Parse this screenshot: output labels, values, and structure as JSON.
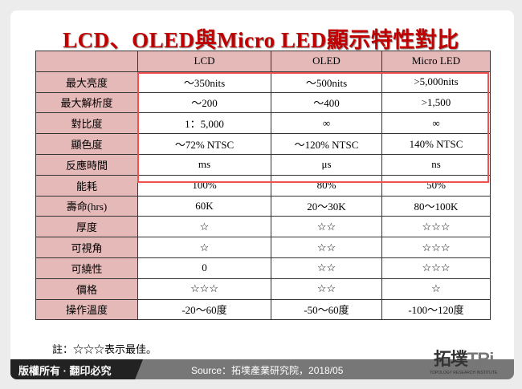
{
  "title": "LCD、OLED與Micro LED顯示特性對比",
  "table": {
    "headers": [
      "",
      "LCD",
      "OLED",
      "Micro LED"
    ],
    "rows": [
      [
        "最大亮度",
        "～350nits",
        "～500nits",
        ">5,000nits"
      ],
      [
        "最大解析度",
        "～200",
        "～400",
        ">1,500"
      ],
      [
        "對比度",
        "1：5,000",
        "∞",
        "∞"
      ],
      [
        "顯色度",
        "～72% NTSC",
        "～120% NTSC",
        "140% NTSC"
      ],
      [
        "反應時間",
        "ms",
        "μs",
        "ns"
      ],
      [
        "能耗",
        "100%",
        "80%",
        "50%"
      ],
      [
        "壽命(hrs)",
        "60K",
        "20～30K",
        "80～100K"
      ],
      [
        "厚度",
        "☆",
        "☆☆",
        "☆☆☆"
      ],
      [
        "可視角",
        "☆",
        "☆☆",
        "☆☆☆"
      ],
      [
        "可繞性",
        "0",
        "☆☆",
        "☆☆☆"
      ],
      [
        "價格",
        "☆☆☆",
        "☆☆",
        "☆"
      ],
      [
        "操作溫度",
        "-20～60度",
        "-50～60度",
        "-100～120度"
      ]
    ]
  },
  "note": "註：☆☆☆表示最佳。",
  "footer": {
    "copyright": "版權所有 · 翻印必究",
    "source": "Source：拓墣產業研究院，2018/05"
  },
  "logo": {
    "main": "拓墣",
    "tri": "TRi",
    "sub": "TOPOLOGY RESEARCH INSTITUTE"
  },
  "colors": {
    "title": "#c00000",
    "header_bg": "#e6b9b9",
    "highlight": "#f05050"
  }
}
